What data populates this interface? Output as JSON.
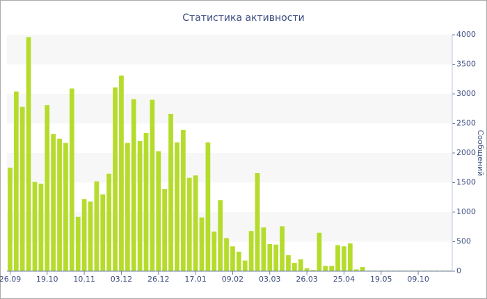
{
  "chart_data": {
    "type": "bar",
    "title": "Статистика активности",
    "y_label": "Сообщений",
    "categories": [
      "26.09",
      null,
      null,
      null,
      null,
      null,
      "19.10",
      null,
      null,
      null,
      null,
      null,
      "10.11",
      null,
      null,
      null,
      null,
      null,
      "03.12",
      null,
      null,
      null,
      null,
      null,
      "26.12",
      null,
      null,
      null,
      null,
      null,
      "17.01",
      null,
      null,
      null,
      null,
      null,
      "09.02",
      null,
      null,
      null,
      null,
      null,
      "03.03",
      null,
      null,
      null,
      null,
      null,
      "26.03",
      null,
      null,
      null,
      null,
      null,
      "25.04",
      null,
      null,
      null,
      null,
      null,
      "19.05",
      null,
      null,
      null,
      null,
      null,
      "09.10",
      null,
      null,
      null,
      null,
      null
    ],
    "values": [
      1750,
      3040,
      2780,
      3960,
      1510,
      1480,
      2810,
      2320,
      2240,
      2170,
      3090,
      920,
      1220,
      1180,
      1520,
      1300,
      1650,
      3110,
      3310,
      2170,
      2910,
      2200,
      2340,
      2900,
      2030,
      1390,
      2660,
      2180,
      2390,
      1580,
      1620,
      910,
      2180,
      670,
      1200,
      560,
      420,
      330,
      180,
      680,
      1660,
      740,
      460,
      450,
      760,
      270,
      140,
      200,
      50,
      20,
      650,
      90,
      90,
      440,
      420,
      470,
      30,
      70,
      10,
      10,
      10,
      10,
      10,
      10,
      10,
      10,
      10,
      10,
      10,
      10,
      10,
      10
    ],
    "color": "#b5dc2c",
    "ylim": [
      0,
      4000
    ],
    "yticks": [
      0,
      500,
      1000,
      1500,
      2000,
      2500,
      3000,
      3500,
      4000
    ],
    "grid": true
  }
}
